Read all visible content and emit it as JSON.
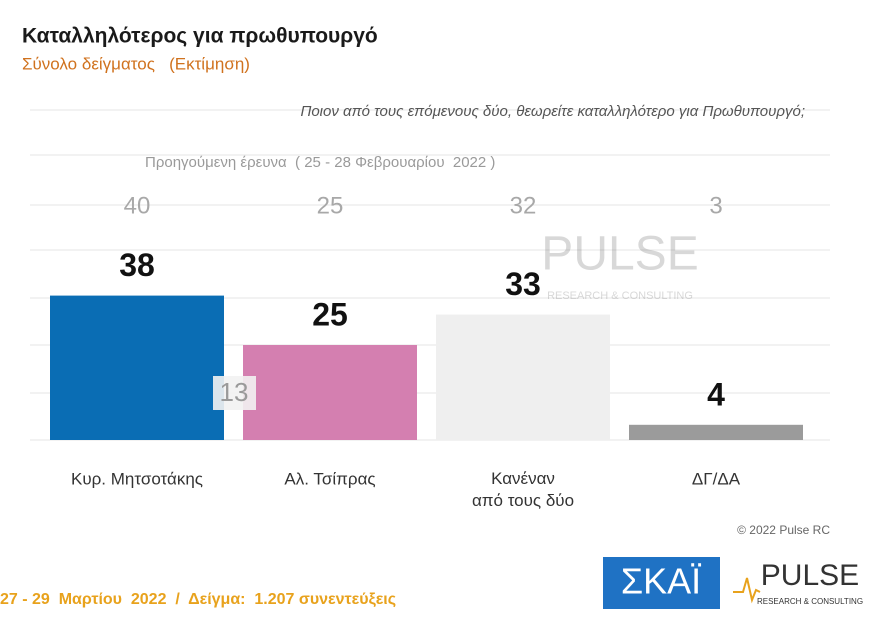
{
  "chart_data": {
    "type": "bar",
    "title": "Καταλληλότερος για πρωθυπουργό",
    "subtitle": "Σύνολο δείγματος   (Εκτίμηση)",
    "question": "Ποιον από τους επόμενους δύο, θεωρείτε καταλληλότερο για Πρωθυπουργό;",
    "categories": [
      "Κυρ. Μητσοτάκης",
      "Αλ. Τσίπρας",
      "Κανέναν\nαπό τους δύο",
      "ΔΓ/ΔΑ"
    ],
    "values": [
      38,
      25,
      33,
      4
    ],
    "colors": [
      "#0a6db4",
      "#d47fb0",
      "#efefef",
      "#9b9b9b"
    ],
    "previous": {
      "label": "Προηγούμενη έρευνα  ( 25 - 28 Φεβρουαρίου  2022 )",
      "values": [
        40,
        25,
        32,
        3
      ]
    },
    "gap_annotation": 13,
    "ylim": [
      0,
      100
    ],
    "copyright": "© 2022 Pulse RC",
    "footer": "27 - 29  Μαρτίου  2022  /  Δείγμα:  1.207 συνεντεύξεις",
    "logos": {
      "skai": "ΣΚΑΪ",
      "pulse": "PULSE",
      "pulse_tagline": "RESEARCH & CONSULTING"
    }
  }
}
